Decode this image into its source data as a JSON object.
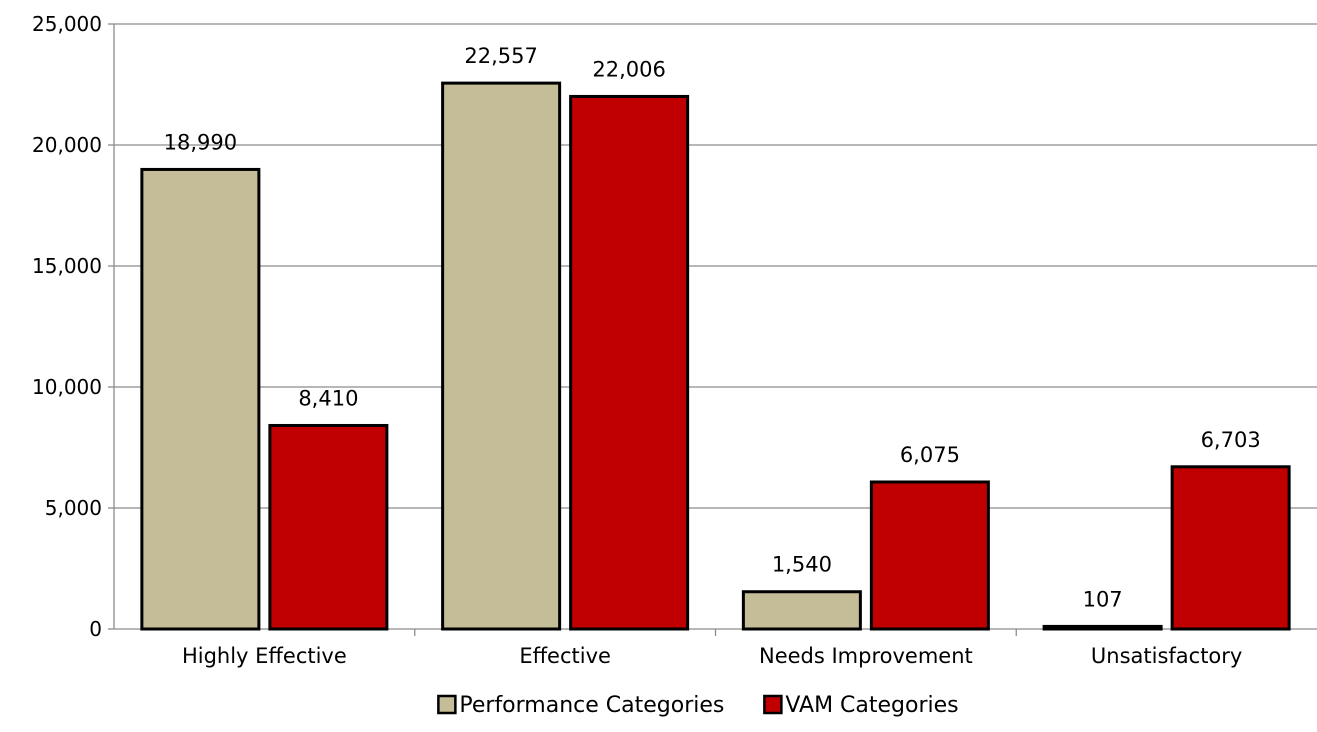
{
  "chart_data": {
    "type": "bar",
    "categories": [
      "Highly Effective",
      "Effective",
      "Needs Improvement",
      "Unsatisfactory"
    ],
    "series": [
      {
        "name": "Performance Categories",
        "values": [
          18990,
          22557,
          1540,
          107
        ],
        "color": "#c4bd97"
      },
      {
        "name": "VAM Categories",
        "values": [
          8410,
          22006,
          6075,
          6703
        ],
        "color": "#c00000"
      }
    ],
    "data_labels": [
      [
        "18,990",
        "22,557",
        "1,540",
        "107"
      ],
      [
        "8,410",
        "22,006",
        "6,075",
        "6,703"
      ]
    ],
    "ylim": [
      0,
      25000
    ],
    "yticks": [
      0,
      5000,
      10000,
      15000,
      20000,
      25000
    ],
    "ytick_labels": [
      "0",
      "5,000",
      "10,000",
      "15,000",
      "20,000",
      "25,000"
    ],
    "grid": true,
    "legend_position": "bottom",
    "title": "",
    "xlabel": "",
    "ylabel": ""
  }
}
